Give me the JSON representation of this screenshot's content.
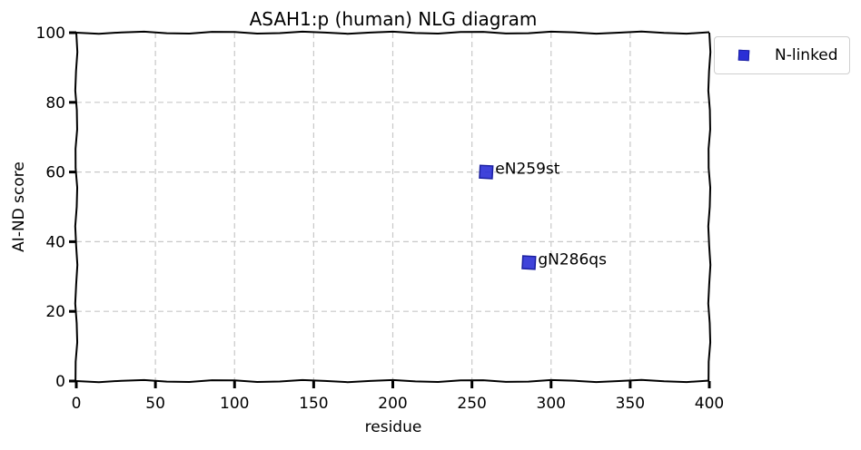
{
  "chart_data": {
    "type": "scatter",
    "title": "ASAH1:p (human) NLG diagram",
    "xlabel": "residue",
    "ylabel": "AI-ND score",
    "xlim": [
      0,
      400
    ],
    "ylim": [
      0,
      100
    ],
    "xticks": [
      0,
      50,
      100,
      150,
      200,
      250,
      300,
      350,
      400
    ],
    "yticks": [
      0,
      20,
      40,
      60,
      80,
      100
    ],
    "grid": true,
    "legend_position": "outside-top-right",
    "series": [
      {
        "name": "N-linked",
        "color": "#2a2fd6",
        "marker": "square",
        "points": [
          {
            "x": 259,
            "y": 60,
            "label": "eN259st"
          },
          {
            "x": 286,
            "y": 34,
            "label": "gN286qs"
          }
        ]
      }
    ]
  }
}
